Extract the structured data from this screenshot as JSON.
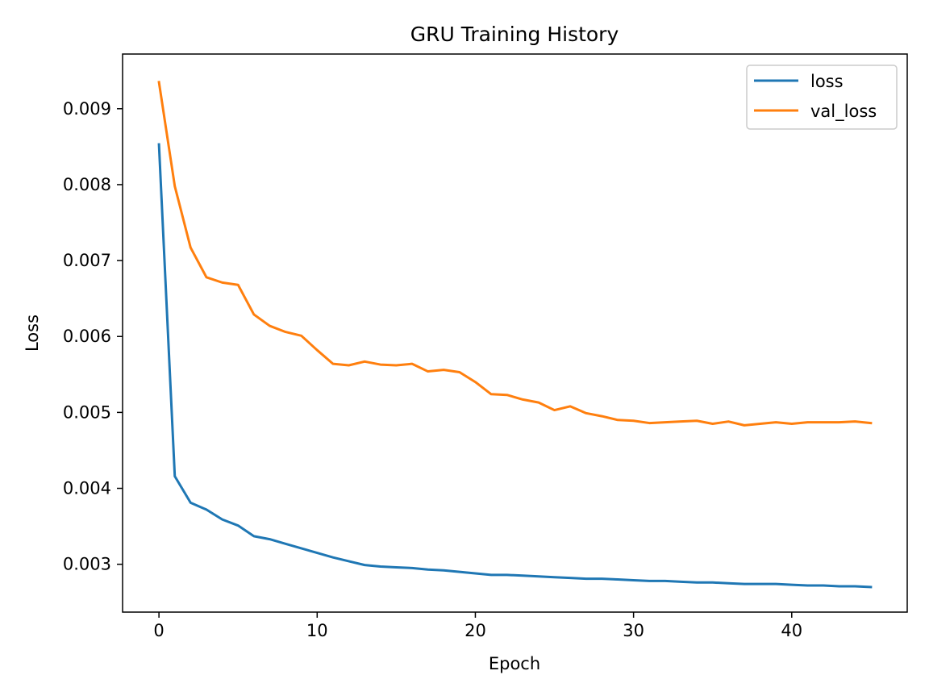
{
  "chart_data": {
    "type": "line",
    "title": "GRU Training History",
    "xlabel": "Epoch",
    "ylabel": "Loss",
    "xlim": [
      -2.3,
      47.3
    ],
    "ylim": [
      0.00237,
      0.00972
    ],
    "x_ticks": [
      0,
      10,
      20,
      30,
      40
    ],
    "x_tick_labels": [
      "0",
      "10",
      "20",
      "30",
      "40"
    ],
    "y_ticks": [
      0.003,
      0.004,
      0.005,
      0.006,
      0.007,
      0.008,
      0.009
    ],
    "y_tick_labels": [
      "0.003",
      "0.004",
      "0.005",
      "0.006",
      "0.007",
      "0.008",
      "0.009"
    ],
    "grid": false,
    "legend_position": "top-right",
    "x": [
      0,
      1,
      2,
      3,
      4,
      5,
      6,
      7,
      8,
      9,
      10,
      11,
      12,
      13,
      14,
      15,
      16,
      17,
      18,
      19,
      20,
      21,
      22,
      23,
      24,
      25,
      26,
      27,
      28,
      29,
      30,
      31,
      32,
      33,
      34,
      35,
      36,
      37,
      38,
      39,
      40,
      41,
      42,
      43,
      44,
      45
    ],
    "series": [
      {
        "name": "loss",
        "color": "#1f77b4",
        "values": [
          0.00853,
          0.00416,
          0.00381,
          0.00372,
          0.00359,
          0.00351,
          0.00337,
          0.00333,
          0.00327,
          0.00321,
          0.00315,
          0.00309,
          0.00304,
          0.00299,
          0.00297,
          0.00296,
          0.00295,
          0.00293,
          0.00292,
          0.0029,
          0.00288,
          0.00286,
          0.00286,
          0.00285,
          0.00284,
          0.00283,
          0.00282,
          0.00281,
          0.00281,
          0.0028,
          0.00279,
          0.00278,
          0.00278,
          0.00277,
          0.00276,
          0.00276,
          0.00275,
          0.00274,
          0.00274,
          0.00274,
          0.00273,
          0.00272,
          0.00272,
          0.00271,
          0.00271,
          0.0027
        ]
      },
      {
        "name": "val_loss",
        "color": "#ff7f0e",
        "values": [
          0.00935,
          0.00798,
          0.00717,
          0.00678,
          0.00671,
          0.00668,
          0.00629,
          0.00614,
          0.00606,
          0.00601,
          0.00582,
          0.00564,
          0.00562,
          0.00567,
          0.00563,
          0.00562,
          0.00564,
          0.00554,
          0.00556,
          0.00553,
          0.0054,
          0.00524,
          0.00523,
          0.00517,
          0.00513,
          0.00503,
          0.00508,
          0.00499,
          0.00495,
          0.0049,
          0.00489,
          0.00486,
          0.00487,
          0.00488,
          0.00489,
          0.00485,
          0.00488,
          0.00483,
          0.00485,
          0.00487,
          0.00485,
          0.00487,
          0.00487,
          0.00487,
          0.00488,
          0.00486
        ]
      }
    ]
  }
}
